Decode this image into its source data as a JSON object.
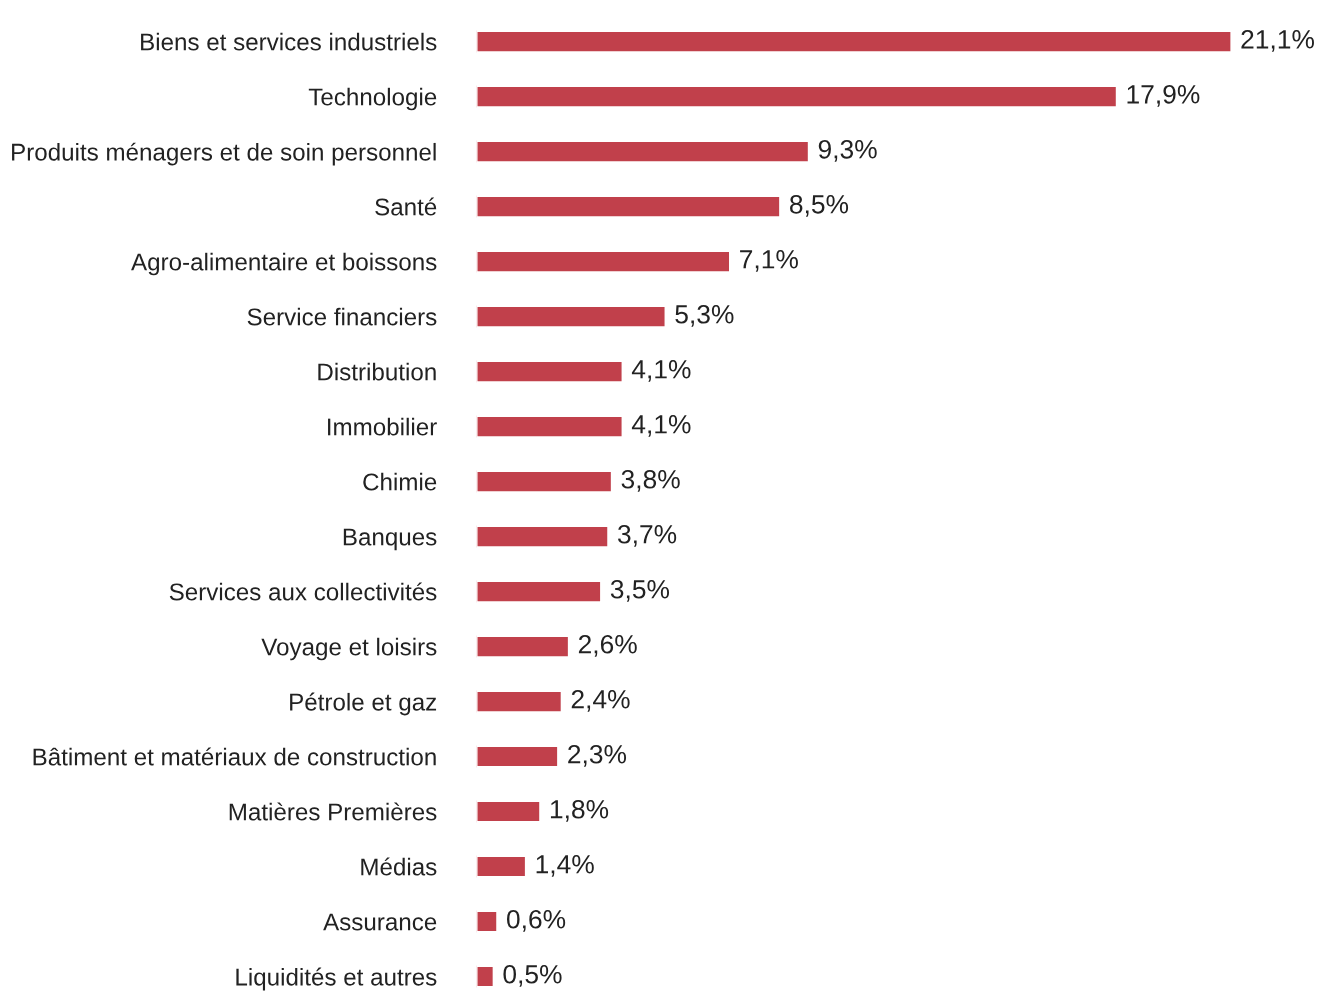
{
  "chart_data": {
    "type": "bar",
    "orientation": "horizontal",
    "tick_labels": "y",
    "grid": false,
    "legend": false,
    "categories": [
      "Biens et services industriels",
      "Technologie",
      "Produits ménagers et de soin personnel",
      "Santé",
      "Agro-alimentaire et boissons",
      "Service financiers",
      "Distribution",
      "Immobilier",
      "Chimie",
      "Banques",
      "Services aux collectivités",
      "Voyage et loisirs",
      "Pétrole et gaz",
      "Bâtiment et matériaux de construction",
      "Matières Premières",
      "Médias",
      "Assurance",
      "Liquidités et autres"
    ],
    "values": [
      21.1,
      17.9,
      9.3,
      8.5,
      7.1,
      5.3,
      4.1,
      4.1,
      3.8,
      3.7,
      3.5,
      2.6,
      2.4,
      2.3,
      1.8,
      1.4,
      0.6,
      0.5
    ],
    "value_labels": [
      "21,1%",
      "17,9%",
      "9,3%",
      "8,5%",
      "7,1%",
      "5,3%",
      "4,1%",
      "4,1%",
      "3,8%",
      "3,7%",
      "3,5%",
      "2,6%",
      "2,4%",
      "2,3%",
      "1,8%",
      "1,4%",
      "0,6%",
      "0,5%"
    ],
    "color": "#c1404b"
  }
}
